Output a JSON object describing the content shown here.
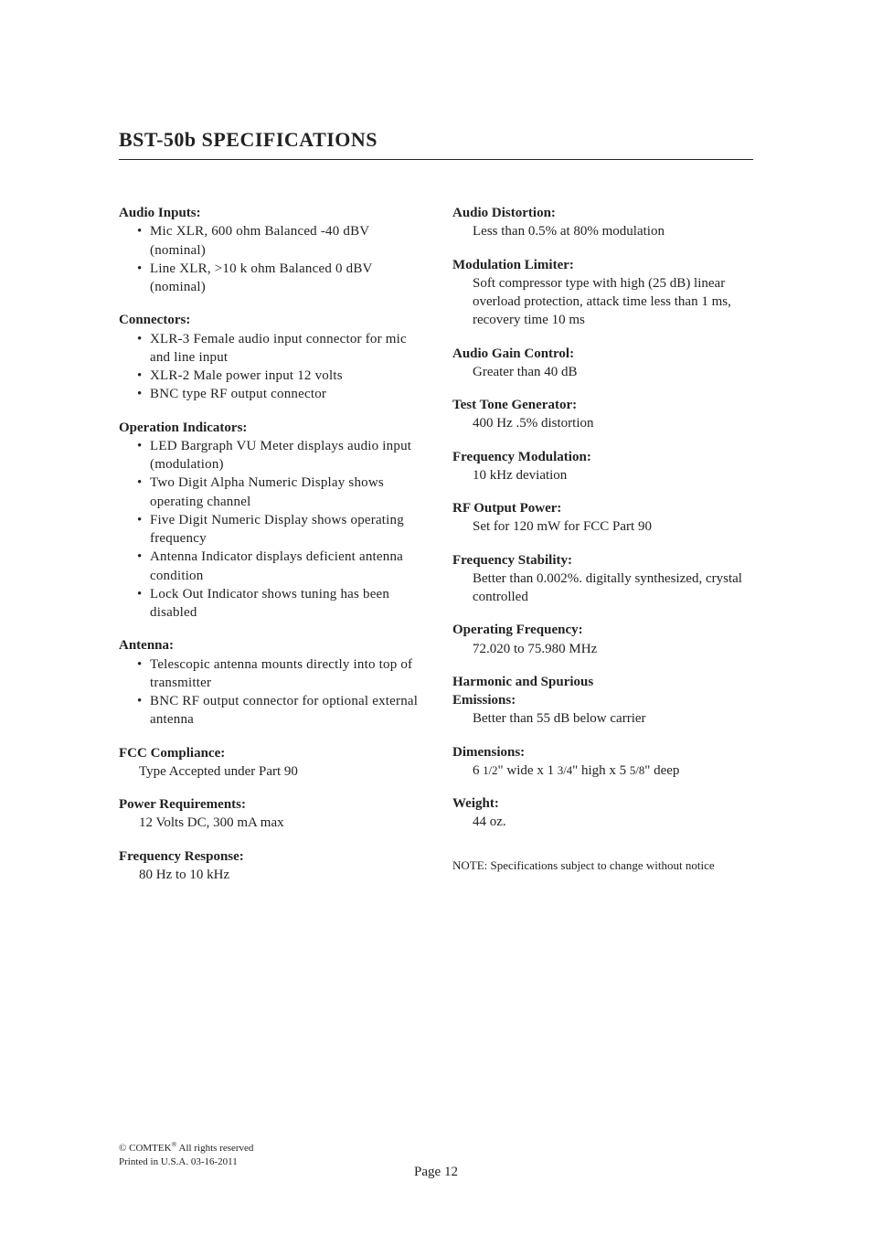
{
  "title": "BST-50b SPECIFICATIONS",
  "left": {
    "audio_inputs": {
      "title": "Audio Inputs:",
      "items": [
        "Mic XLR, 600 ohm Balanced -40 dBV (nominal)",
        "Line XLR, >10 k ohm Balanced 0 dBV (nominal)"
      ]
    },
    "connectors": {
      "title": "Connectors:",
      "items": [
        "XLR-3 Female audio input connector for mic and line input",
        "XLR-2 Male power input 12 volts",
        "BNC type RF output connector"
      ]
    },
    "operation_indicators": {
      "title": "Operation Indicators:",
      "items": [
        "LED Bargraph VU Meter displays audio input (modulation)",
        "Two Digit Alpha Numeric Display shows operating channel",
        "Five Digit Numeric Display shows operating frequency",
        "Antenna Indicator displays deficient antenna condition",
        "Lock Out Indicator shows tuning has been disabled"
      ]
    },
    "antenna": {
      "title": "Antenna:",
      "items": [
        "Telescopic antenna mounts directly into top of transmitter",
        "BNC RF output connector for optional external antenna"
      ]
    },
    "fcc": {
      "title": "FCC Compliance:",
      "body": "Type Accepted under Part 90"
    },
    "power": {
      "title": "Power Requirements:",
      "body": "12 Volts DC, 300 mA max"
    },
    "freq_response": {
      "title": "Frequency Response:",
      "body": "80 Hz to 10 kHz"
    }
  },
  "right": {
    "distortion": {
      "title": "Audio Distortion:",
      "body": "Less than 0.5% at 80% modulation"
    },
    "limiter": {
      "title": "Modulation Limiter:",
      "body": "Soft compressor type with high (25 dB) linear overload protection, attack time less than 1 ms, recovery time 10 ms"
    },
    "gain": {
      "title": "Audio Gain Control:",
      "body": "Greater than 40 dB"
    },
    "tone": {
      "title": "Test Tone Generator:",
      "body": "400 Hz .5% distortion"
    },
    "fm": {
      "title": "Frequency Modulation:",
      "body": "10 kHz deviation"
    },
    "rfout": {
      "title": "RF Output Power:",
      "body": "Set for 120 mW for FCC Part 90"
    },
    "stability": {
      "title": "Frequency Stability:",
      "body": "Better than 0.002%. digitally synthesized, crystal controlled"
    },
    "opfreq": {
      "title": "Operating Frequency:",
      "body": "72.020 to 75.980 MHz"
    },
    "emissions": {
      "title1": "Harmonic and Spurious",
      "title2": "Emissions:",
      "body": "Better than 55 dB below carrier"
    },
    "dims": {
      "title": "Dimensions:"
    },
    "weight": {
      "title": "Weight:",
      "body": "44 oz."
    },
    "note": "NOTE: Specifications subject to change without notice"
  },
  "footer": {
    "copyright1": "© COMTEK",
    "copyright2": " All rights reserved",
    "printed": "Printed in U.S.A. 03-16-2011",
    "page": "Page 12"
  }
}
